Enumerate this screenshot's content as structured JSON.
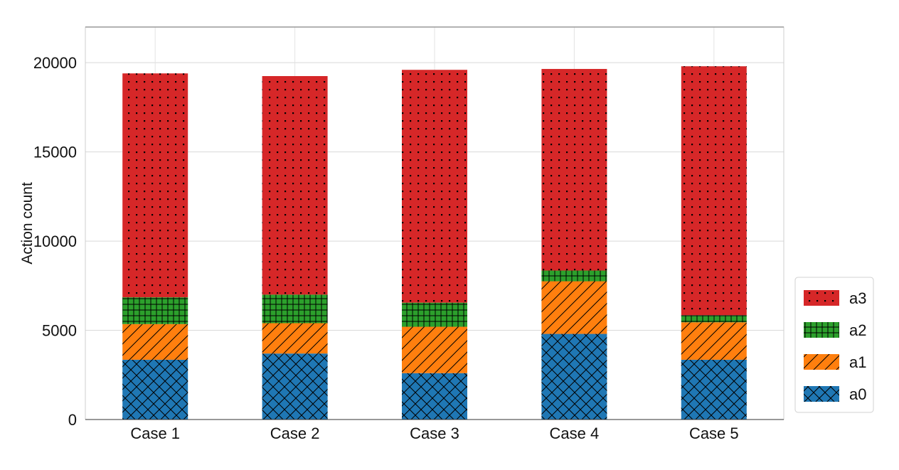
{
  "chart_data": {
    "type": "bar",
    "stacked": true,
    "title": "",
    "xlabel": "",
    "ylabel": "Action count",
    "categories": [
      "Case 1",
      "Case 2",
      "Case 3",
      "Case 4",
      "Case 5"
    ],
    "ylim": [
      0,
      22000
    ],
    "yticks": [
      0,
      5000,
      10000,
      15000,
      20000
    ],
    "ytick_labels": [
      "0",
      "5000",
      "10000",
      "15000",
      "20000"
    ],
    "grid": true,
    "legend_position": "lower-right-outside",
    "series": [
      {
        "name": "a0",
        "color": "#1f77b4",
        "hatch": "crosshatch",
        "values": [
          3350,
          3700,
          2600,
          4800,
          3350
        ]
      },
      {
        "name": "a1",
        "color": "#ff7f0e",
        "hatch": "diagonal",
        "values": [
          2000,
          1700,
          2600,
          2950,
          2100
        ]
      },
      {
        "name": "a2",
        "color": "#2ca02c",
        "hatch": "grid",
        "values": [
          1500,
          1600,
          1350,
          600,
          400
        ]
      },
      {
        "name": "a3",
        "color": "#d62728",
        "hatch": "dots",
        "values": [
          12550,
          12250,
          13050,
          11300,
          13950
        ]
      }
    ],
    "legend_order": [
      "a3",
      "a2",
      "a1",
      "a0"
    ]
  }
}
